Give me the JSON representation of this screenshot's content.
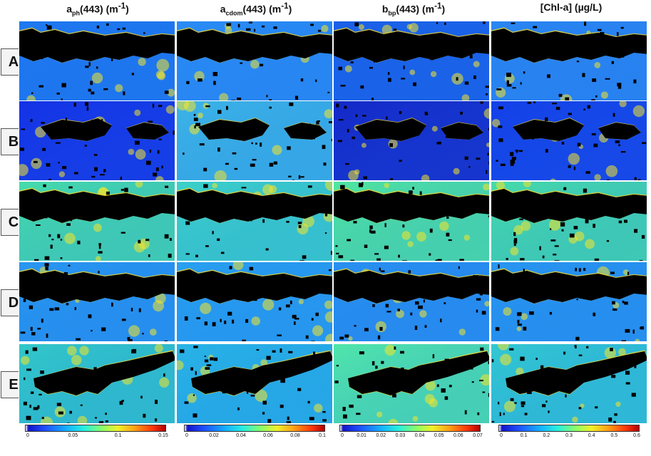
{
  "columns": [
    {
      "main": "a",
      "sub": "ph",
      "rest": "(443) (m",
      "sup": "-1",
      "close": ")"
    },
    {
      "main": "a",
      "sub": "cdom",
      "rest": "(443) (m",
      "sup": "-1",
      "close": ")"
    },
    {
      "main": "b",
      "sub": "bp",
      "rest": "(443) (m",
      "sup": "-1",
      "close": ")"
    },
    {
      "main": "[Chl-a] (µg/L)",
      "sub": "",
      "rest": "",
      "sup": "",
      "close": ""
    }
  ],
  "rows": [
    "A",
    "B",
    "C",
    "D",
    "E"
  ],
  "colorbars": [
    {
      "ticks": [
        "0",
        "0.05",
        "0.1",
        "0.15"
      ]
    },
    {
      "ticks": [
        "0",
        "0.02",
        "0.04",
        "0.06",
        "0.08",
        "0.1"
      ]
    },
    {
      "ticks": [
        "0",
        "0.01",
        "0.02",
        "0.03",
        "0.04",
        "0.05",
        "0.06",
        "0.07"
      ]
    },
    {
      "ticks": [
        "0",
        "0.1",
        "0.2",
        "0.3",
        "0.4",
        "0.5",
        "0.6"
      ]
    }
  ],
  "panel_colors": [
    [
      "#1e78f0",
      "#2a8cf5",
      "#1a60e8",
      "#2a86f2"
    ],
    [
      "#1432e6",
      "#3cb4e6",
      "#1428c8",
      "#1440e8"
    ],
    [
      "#46dcaa",
      "#3cd2c8",
      "#50e6a0",
      "#46dcaa"
    ],
    [
      "#2896f0",
      "#28a0f0",
      "#2890f0",
      "#2896f0"
    ],
    [
      "#32c8c8",
      "#28b4e6",
      "#50e6aa",
      "#32c8d2"
    ]
  ]
}
